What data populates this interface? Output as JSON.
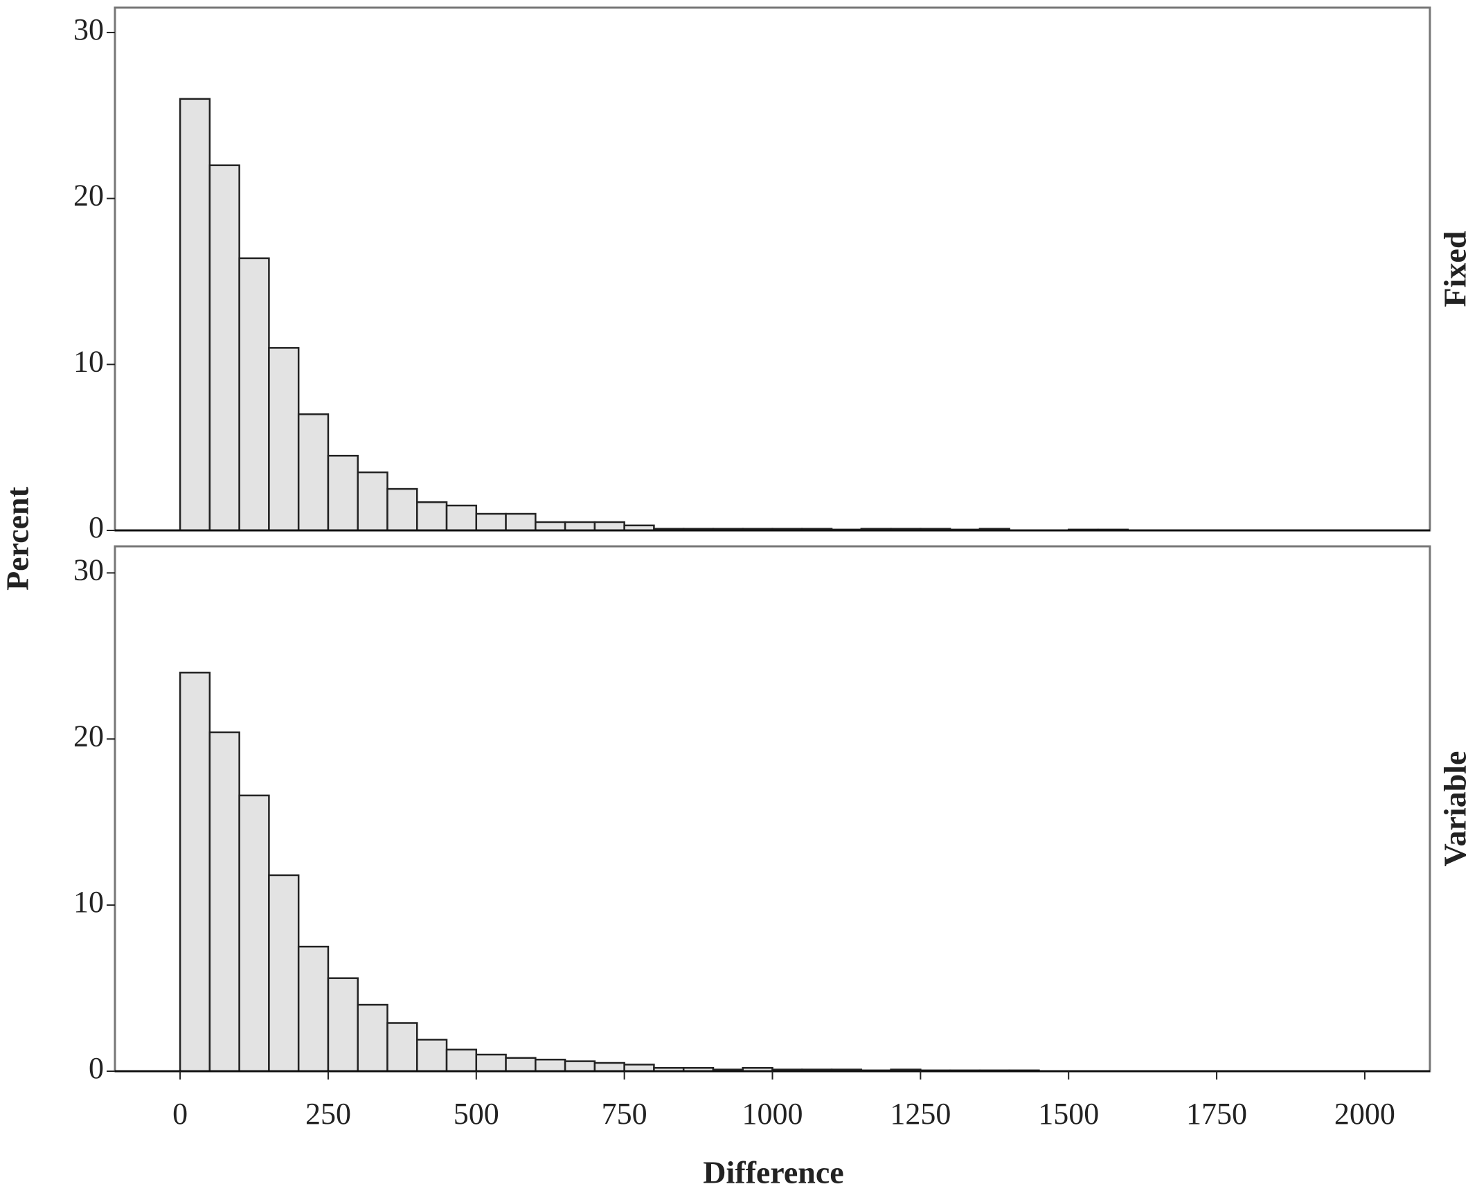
{
  "chart_data": [
    {
      "type": "histogram",
      "label": "Fixed",
      "ylabel": "Percent",
      "color": "#e3e3e3",
      "bins": [
        0,
        50,
        100,
        150,
        200,
        250,
        300,
        350,
        400,
        450,
        500,
        550,
        600,
        650,
        700,
        750,
        800,
        850,
        900,
        950,
        1000,
        1050,
        1100,
        1150,
        1200,
        1250,
        1300,
        1350,
        1400,
        1450,
        1500,
        1550,
        1600
      ],
      "values": [
        26,
        22,
        16.4,
        11,
        7,
        4.5,
        3.5,
        2.5,
        1.7,
        1.5,
        1.0,
        1.0,
        0.5,
        0.5,
        0.5,
        0.3,
        0.1,
        0.1,
        0.1,
        0.1,
        0.1,
        0.1,
        0.05,
        0.1,
        0.1,
        0.1,
        0.05,
        0.1,
        0,
        0,
        0.05,
        0.05
      ],
      "xlim": [
        -110,
        2110
      ],
      "ylim": [
        0,
        31.5
      ],
      "yticks": [
        0,
        10,
        20,
        30
      ]
    },
    {
      "type": "histogram",
      "label": "Variable",
      "xlabel": "Difference",
      "color": "#e3e3e3",
      "bins": [
        0,
        50,
        100,
        150,
        200,
        250,
        300,
        350,
        400,
        450,
        500,
        550,
        600,
        650,
        700,
        750,
        800,
        850,
        900,
        950,
        1000,
        1050,
        1100,
        1150,
        1200,
        1250,
        1300,
        1350,
        1400,
        1450,
        1500,
        1550,
        1600
      ],
      "values": [
        24,
        20.4,
        16.6,
        11.8,
        7.5,
        5.6,
        4,
        2.9,
        1.9,
        1.3,
        1.0,
        0.8,
        0.7,
        0.6,
        0.5,
        0.4,
        0.2,
        0.2,
        0.1,
        0.2,
        0.1,
        0.1,
        0.1,
        0.05,
        0.1,
        0.05,
        0.05,
        0.05,
        0.05,
        0,
        0,
        0
      ],
      "xlim": [
        -110,
        2110
      ],
      "ylim": [
        0,
        31.6
      ],
      "yticks": [
        0,
        10,
        20,
        30
      ],
      "xticks": [
        0,
        250,
        500,
        750,
        1000,
        1250,
        1500,
        1750,
        2000
      ]
    }
  ]
}
